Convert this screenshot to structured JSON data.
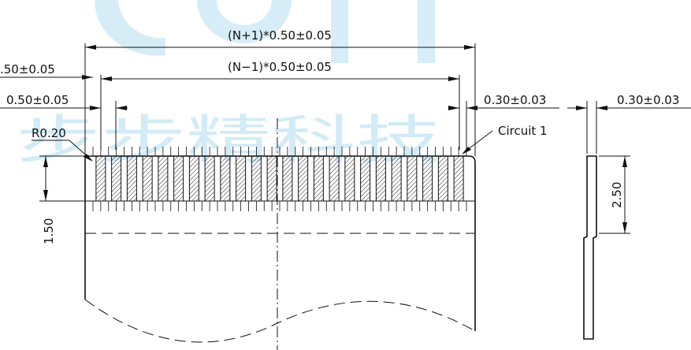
{
  "watermark": "步步精科技",
  "dimensions": {
    "overall_width": "(N+1)*0.50±0.05",
    "contact_span": "(N−1)*0.50±0.05",
    "edge_offset": ".50±0.05",
    "pitch": "0.50±0.05",
    "corner_radius": "R0.20",
    "contact_width": "0.30±0.03",
    "exposed_length": "1.50",
    "thickness": "0.30±0.03",
    "stiffener_length": "2.50"
  },
  "callout": "Circuit 1"
}
